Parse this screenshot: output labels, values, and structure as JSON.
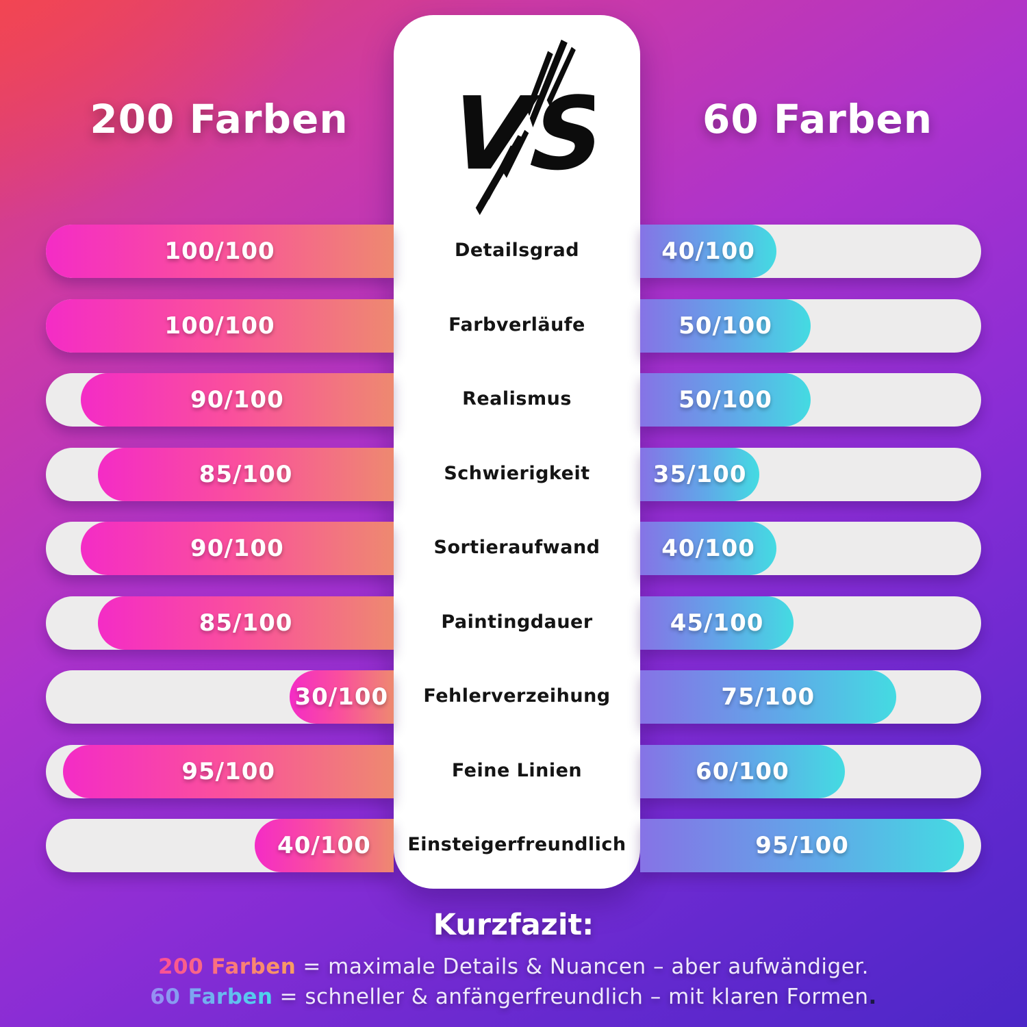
{
  "header": {
    "left_title": "200 Farben",
    "vs_label": "VS",
    "right_title": "60 Farben"
  },
  "chart_data": {
    "type": "bar",
    "orientation": "horizontal-comparison",
    "categories": [
      "Detailsgrad",
      "Farbverläufe",
      "Realismus",
      "Schwierigkeit",
      "Sortieraufwand",
      "Paintingdauer",
      "Fehlerverzeihung",
      "Feine Linien",
      "Einsteigerfreundlich"
    ],
    "series": [
      {
        "name": "200 Farben",
        "side": "left",
        "values": [
          100,
          100,
          90,
          85,
          90,
          85,
          30,
          95,
          40
        ]
      },
      {
        "name": "60 Farben",
        "side": "right",
        "values": [
          40,
          50,
          50,
          35,
          40,
          45,
          75,
          60,
          95
        ]
      }
    ],
    "value_format": "{v}/100",
    "range": [
      0,
      100
    ],
    "legend_position": "top",
    "grid": false
  },
  "footer": {
    "heading": "Kurzfazit:",
    "lines": [
      {
        "highlight": "200 Farben",
        "rest": "= maximale Details & Nuancen – aber aufwändiger.",
        "tail": ""
      },
      {
        "highlight": "60 Farben",
        "rest": "= schneller & anfängerfreundlich – mit klaren Formen",
        "tail": "."
      }
    ]
  },
  "colors": {
    "left_bar_gradient": [
      "#F42CC6",
      "#FA4F9D",
      "#EE8970"
    ],
    "right_bar_gradient": [
      "#8673E6",
      "#60A8E8",
      "#44DBE2"
    ],
    "track": "#EDECEC",
    "panel": "#FFFFFF",
    "background_top_left": "#E4445F",
    "background_bottom_right": "#4B27C7",
    "category_text": "#141414",
    "highlight_warm": [
      "#FB4F96",
      "#F89F60"
    ],
    "highlight_cool": [
      "#988DF2",
      "#49D7EC"
    ]
  }
}
